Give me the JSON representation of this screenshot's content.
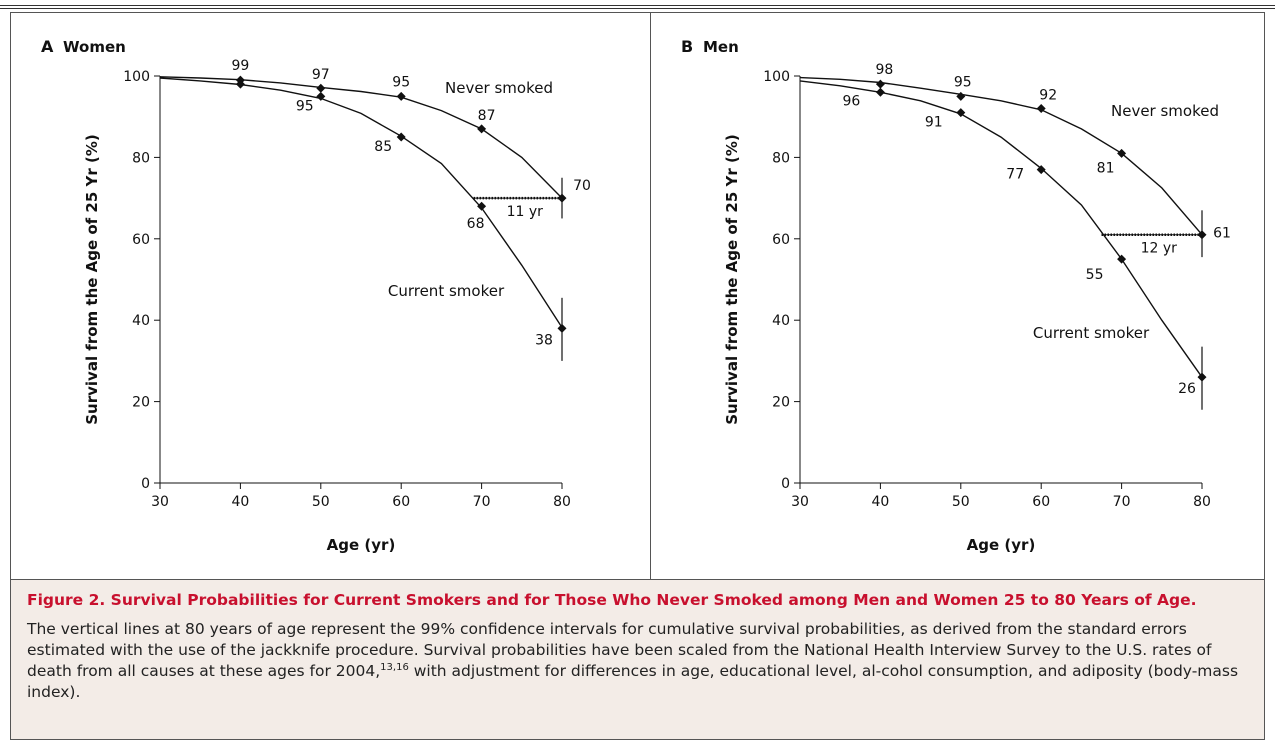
{
  "chart_data": [
    {
      "type": "line",
      "panel_letter": "A",
      "title": "Women",
      "xlabel": "Age (yr)",
      "ylabel": "Survival from the Age of 25 Yr (%)",
      "xlim": [
        30,
        80
      ],
      "ylim": [
        0,
        100
      ],
      "x_ticks": [
        "30",
        "40",
        "50",
        "60",
        "70",
        "80"
      ],
      "y_ticks": [
        "0",
        "20",
        "40",
        "60",
        "80",
        "100"
      ],
      "grid": false,
      "series": [
        {
          "name": "Never smoked",
          "x": [
            30,
            35,
            40,
            45,
            50,
            55,
            60,
            65,
            70,
            75,
            80
          ],
          "y": [
            99.8,
            99.5,
            99.1,
            98.3,
            97.2,
            96.2,
            94.8,
            91.5,
            87.0,
            80.0,
            70.0
          ],
          "markers": [
            {
              "x": 40,
              "y": 99,
              "label": "99"
            },
            {
              "x": 50,
              "y": 97,
              "label": "97"
            },
            {
              "x": 60,
              "y": 95,
              "label": "95"
            },
            {
              "x": 70,
              "y": 87,
              "label": "87"
            },
            {
              "x": 80,
              "y": 70,
              "label": "70"
            }
          ],
          "ci_80": [
            65,
            75
          ]
        },
        {
          "name": "Current smoker",
          "x": [
            30,
            35,
            40,
            45,
            50,
            55,
            60,
            65,
            70,
            75,
            80
          ],
          "y": [
            99.5,
            98.8,
            97.9,
            96.5,
            94.5,
            90.8,
            85.2,
            78.5,
            67.6,
            53.5,
            38.2
          ],
          "markers": [
            {
              "x": 40,
              "y": 98,
              "label": ""
            },
            {
              "x": 50,
              "y": 95,
              "label": "95"
            },
            {
              "x": 60,
              "y": 85,
              "label": "85"
            },
            {
              "x": 70,
              "y": 68,
              "label": "68"
            },
            {
              "x": 80,
              "y": 38,
              "label": "38"
            }
          ],
          "ci_80": [
            30,
            45.5
          ]
        }
      ],
      "gap": {
        "label": "11 yr",
        "y": 70,
        "x_from": 69,
        "x_to": 80
      }
    },
    {
      "type": "line",
      "panel_letter": "B",
      "title": "Men",
      "xlabel": "Age (yr)",
      "ylabel": "Survival from the Age of 25 Yr (%)",
      "xlim": [
        30,
        80
      ],
      "ylim": [
        0,
        100
      ],
      "x_ticks": [
        "30",
        "40",
        "50",
        "60",
        "70",
        "80"
      ],
      "y_ticks": [
        "0",
        "20",
        "40",
        "60",
        "80",
        "100"
      ],
      "grid": false,
      "series": [
        {
          "name": "Never smoked",
          "x": [
            30,
            35,
            40,
            45,
            50,
            55,
            60,
            65,
            70,
            75,
            80
          ],
          "y": [
            99.6,
            99.2,
            98.4,
            97.0,
            95.5,
            93.9,
            91.7,
            87.0,
            81.0,
            72.5,
            61.0
          ],
          "markers": [
            {
              "x": 40,
              "y": 98,
              "label": "98"
            },
            {
              "x": 50,
              "y": 95,
              "label": "95"
            },
            {
              "x": 60,
              "y": 92,
              "label": "92"
            },
            {
              "x": 70,
              "y": 81,
              "label": "81"
            },
            {
              "x": 80,
              "y": 61,
              "label": "61"
            }
          ],
          "ci_80": [
            55.5,
            67
          ]
        },
        {
          "name": "Current smoker",
          "x": [
            30,
            35,
            40,
            45,
            50,
            55,
            60,
            65,
            70,
            75,
            80
          ],
          "y": [
            98.8,
            97.6,
            96.0,
            93.9,
            90.7,
            85.0,
            77.3,
            68.3,
            55.0,
            40.0,
            26.0
          ],
          "markers": [
            {
              "x": 40,
              "y": 96,
              "label": "96"
            },
            {
              "x": 50,
              "y": 91,
              "label": "91"
            },
            {
              "x": 60,
              "y": 77,
              "label": "77"
            },
            {
              "x": 70,
              "y": 55,
              "label": "55"
            },
            {
              "x": 80,
              "y": 26,
              "label": "26"
            }
          ],
          "ci_80": [
            18,
            33.5
          ]
        }
      ],
      "gap": {
        "label": "12 yr",
        "y": 61,
        "x_from": 67.5,
        "x_to": 80
      }
    }
  ],
  "caption": {
    "figure_label": "Figure 2.",
    "title": "Survival Probabilities for Current Smokers and for Those Who Never Smoked among Men and Women 25 to 80 Years of Age.",
    "body_before_sup": "The vertical lines at 80 years of age represent the 99% confidence intervals for cumulative survival probabilities, as derived from the standard errors estimated with the use of the jackknife procedure. Survival probabilities have been scaled from the National Health Interview Survey to the U.S. rates of death from all causes at these ages for 2004,",
    "sup": "13,16",
    "body_after_sup": " with adjustment for differences in age, educational level, al-cohol consumption, and adiposity (body-mass index)."
  },
  "colors": {
    "caption_title": "#c8102e",
    "caption_background": "#f3ece7",
    "line": "#111111"
  }
}
